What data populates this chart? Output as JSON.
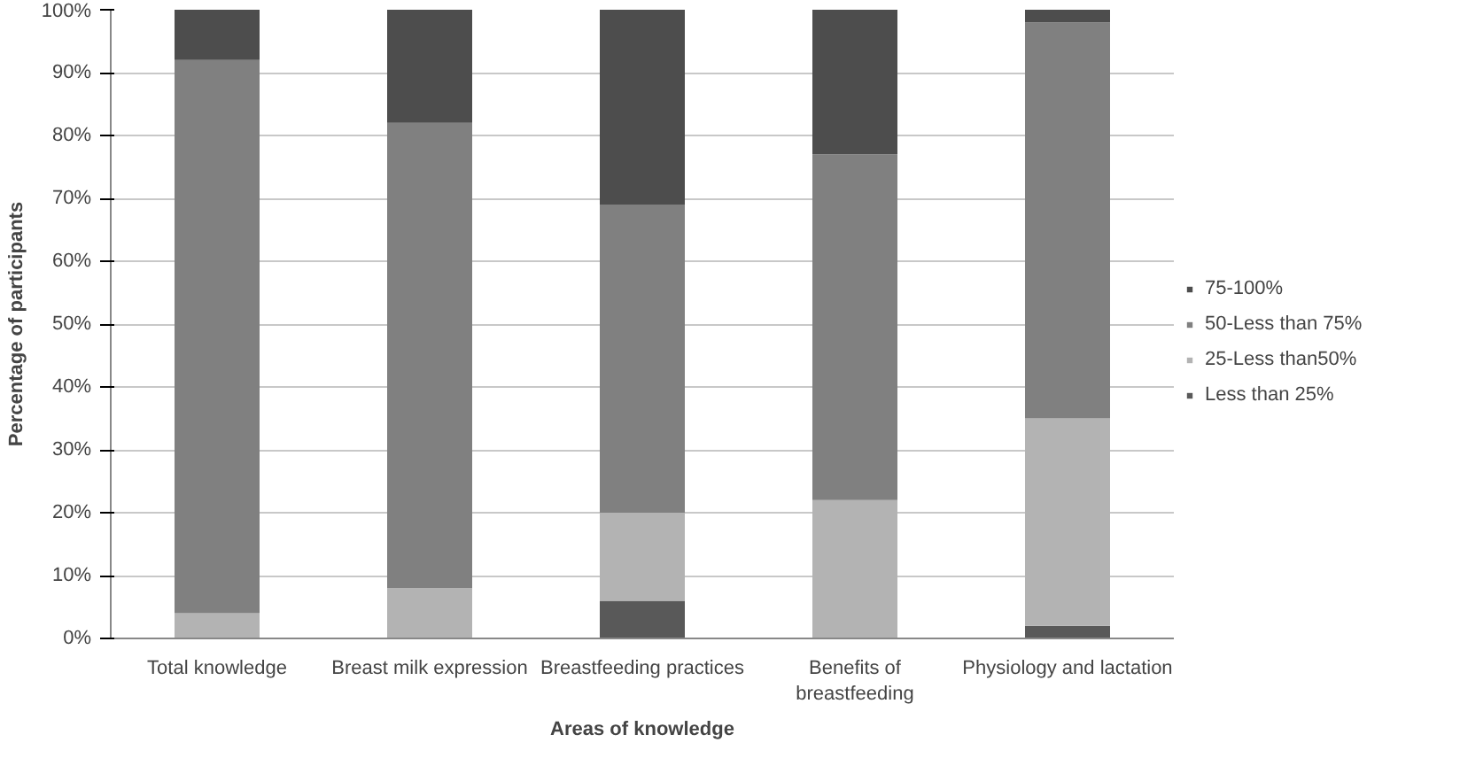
{
  "chart_data": {
    "type": "bar",
    "stacked": true,
    "xlabel": "Areas of knowledge",
    "ylabel": "Percentage of participants",
    "categories": [
      "Total knowledge",
      "Breast milk expression",
      "Breastfeeding practices",
      "Benefits of breastfeeding",
      "Physiology and lactation"
    ],
    "series": [
      {
        "name": "Less than 25%",
        "color": "#595959",
        "values": [
          0,
          0,
          6,
          0,
          2
        ]
      },
      {
        "name": "25-Less than50%",
        "color": "#b3b3b3",
        "values": [
          4,
          8,
          14,
          22,
          33
        ]
      },
      {
        "name": "50-Less than 75%",
        "color": "#808080",
        "values": [
          88,
          74,
          49,
          55,
          63
        ]
      },
      {
        "name": "75-100%",
        "color": "#4d4d4d",
        "values": [
          8,
          18,
          31,
          23,
          2
        ]
      }
    ],
    "ylim": [
      0,
      100
    ],
    "yticks": [
      {
        "value": 0,
        "label": "0%"
      },
      {
        "value": 10,
        "label": "10%"
      },
      {
        "value": 20,
        "label": "20%"
      },
      {
        "value": 30,
        "label": "30%"
      },
      {
        "value": 40,
        "label": "40%"
      },
      {
        "value": 50,
        "label": "50%"
      },
      {
        "value": 60,
        "label": "60%"
      },
      {
        "value": 70,
        "label": "70%"
      },
      {
        "value": 80,
        "label": "80%"
      },
      {
        "value": 90,
        "label": "90%"
      },
      {
        "value": 100,
        "label": "100%"
      }
    ],
    "grid": "y",
    "legend": "right"
  }
}
